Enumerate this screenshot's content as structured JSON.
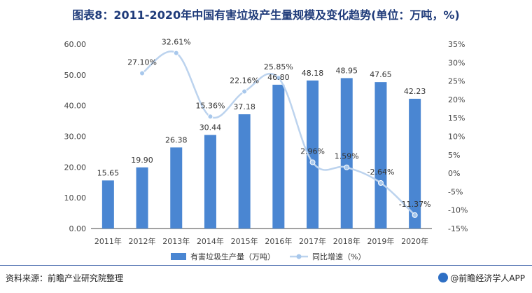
{
  "title": "图表8：2011-2020年中国有害垃圾产生量规模及变化趋势(单位：万吨，%)",
  "source": "资料来源：前瞻产业研究院整理",
  "credit": "@前瞻经济学人APP",
  "colors": {
    "bar": "#4a86d2",
    "line": "#bcd3ee",
    "point": "#a8c8ec",
    "axis": "#444444",
    "title": "#1f3b7a"
  },
  "chart_data": {
    "type": "bar",
    "categories": [
      "2011年",
      "2012年",
      "2013年",
      "2014年",
      "2015年",
      "2016年",
      "2017年",
      "2018年",
      "2019年",
      "2020年"
    ],
    "series": [
      {
        "name": "有害垃圾生产量（万吨）",
        "type": "bar",
        "axis": "left",
        "values": [
          15.65,
          19.9,
          26.38,
          30.44,
          37.18,
          46.8,
          48.18,
          48.95,
          47.65,
          42.23
        ],
        "labels": [
          "15.65",
          "19.90",
          "26.38",
          "30.44",
          "37.18",
          "46.80",
          "48.18",
          "48.95",
          "47.65",
          "42.23"
        ]
      },
      {
        "name": "同比增速（%）",
        "type": "line",
        "axis": "right",
        "values": [
          null,
          27.1,
          32.61,
          15.36,
          22.16,
          25.85,
          2.96,
          1.59,
          -2.64,
          -11.37
        ],
        "labels": [
          "",
          "27.10%",
          "32.61%",
          "15.36%",
          "22.16%",
          "25.85%",
          "2.96%",
          "1.59%",
          "-2.64%",
          "-11.37%"
        ]
      }
    ],
    "y_left": {
      "ylim": [
        0,
        60
      ],
      "ticks": [
        "0.00",
        "10.00",
        "20.00",
        "30.00",
        "40.00",
        "50.00",
        "60.00"
      ]
    },
    "y_right": {
      "ylim": [
        -15,
        35
      ],
      "ticks": [
        "-15%",
        "-10%",
        "-5%",
        "0%",
        "5%",
        "10%",
        "15%",
        "20%",
        "25%",
        "30%",
        "35%"
      ]
    },
    "grid": false,
    "legend_position": "bottom"
  }
}
